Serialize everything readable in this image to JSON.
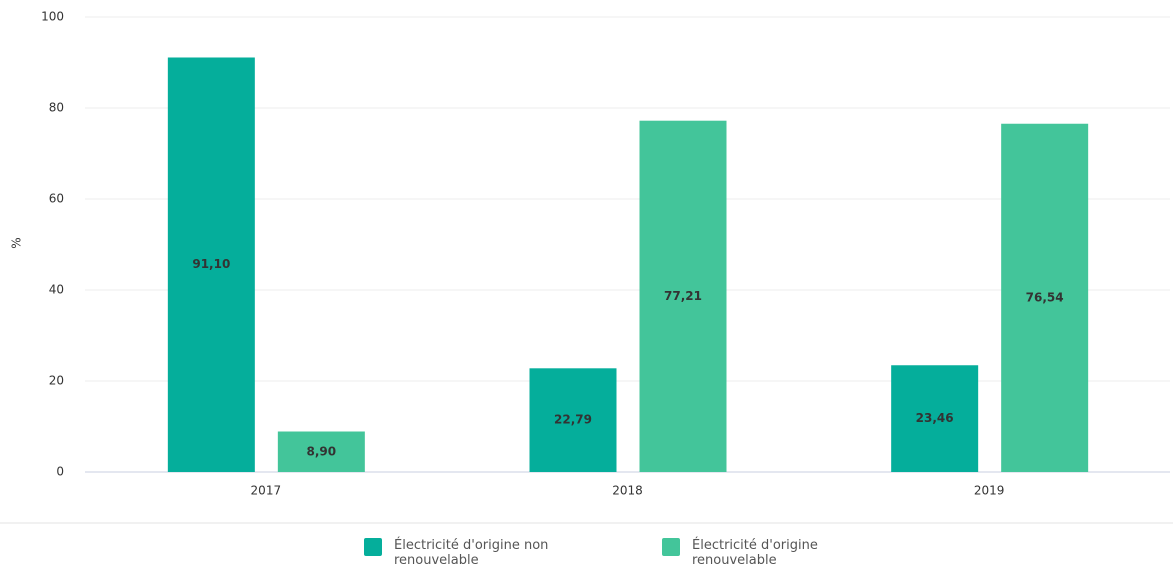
{
  "chart_data": {
    "type": "bar",
    "ylabel": "%",
    "categories": [
      "2017",
      "2018",
      "2019"
    ],
    "series": [
      {
        "name": "Électricité d'origine non renouvelable",
        "color": "#05ae9b",
        "values": [
          91.1,
          22.79,
          23.46
        ],
        "value_labels": [
          "91,10",
          "22,79",
          "23,46"
        ]
      },
      {
        "name": "Électricité d'origine renouvelable",
        "color": "#43c59a",
        "values": [
          8.9,
          77.21,
          76.54
        ],
        "value_labels": [
          "8,90",
          "77,21",
          "76,54"
        ]
      }
    ],
    "ylim": [
      0,
      100
    ],
    "yticks": [
      0,
      20,
      40,
      60,
      80,
      100
    ],
    "grid": true,
    "legend": "bottom"
  }
}
